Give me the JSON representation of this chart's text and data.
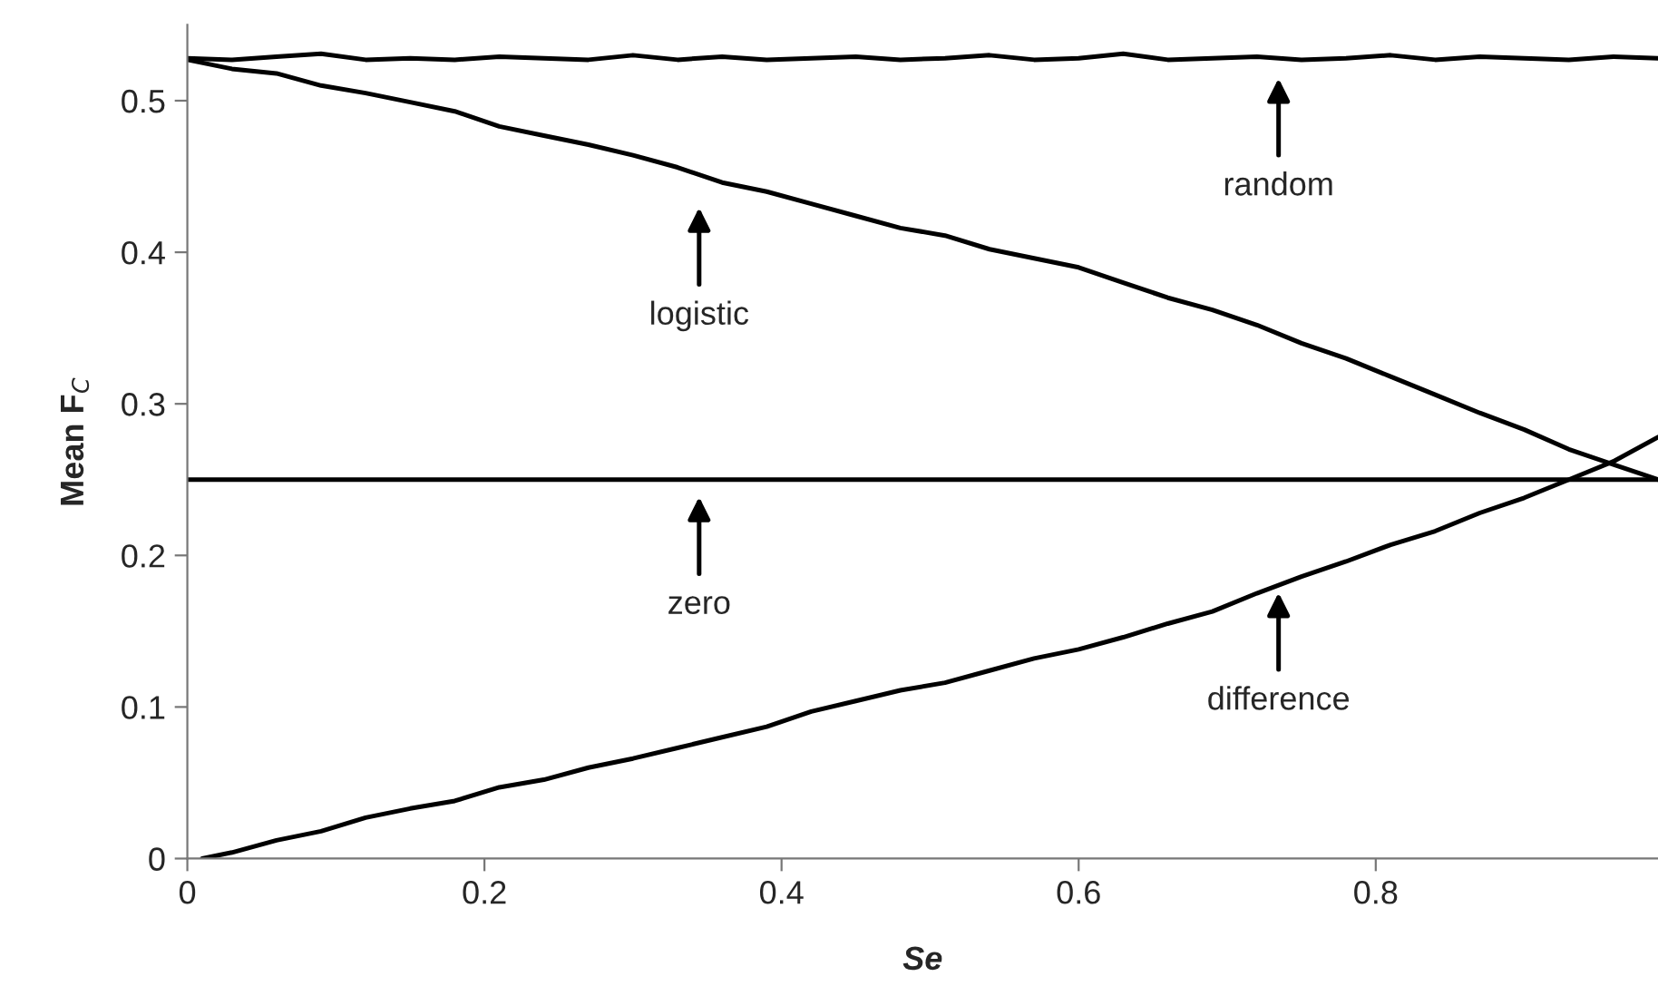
{
  "chart_data": {
    "type": "line",
    "xlabel": "Se",
    "ylabel": "Mean F$_{C}$",
    "x": [
      0,
      0.03,
      0.06,
      0.09,
      0.12,
      0.15,
      0.18,
      0.21,
      0.24,
      0.27,
      0.3,
      0.33,
      0.36,
      0.39,
      0.42,
      0.45,
      0.48,
      0.51,
      0.54,
      0.57,
      0.6,
      0.63,
      0.66,
      0.69,
      0.72,
      0.75,
      0.78,
      0.81,
      0.84,
      0.87,
      0.9,
      0.93,
      0.96,
      0.99
    ],
    "series": [
      {
        "color": "#000000",
        "values": [
          0.528,
          0.527,
          0.529,
          0.531,
          0.527,
          0.528,
          0.527,
          0.529,
          0.528,
          0.527,
          0.53,
          0.527,
          0.529,
          0.527,
          0.528,
          0.529,
          0.527,
          0.528,
          0.53,
          0.527,
          0.528,
          0.531,
          0.527,
          0.528,
          0.529,
          0.527,
          0.528,
          0.53,
          0.527,
          0.529,
          0.528,
          0.527,
          0.529,
          0.528
        ]
      },
      {
        "color": "#000000",
        "values": [
          0.527,
          0.521,
          0.518,
          0.51,
          0.505,
          0.499,
          0.493,
          0.483,
          0.477,
          0.471,
          0.464,
          0.456,
          0.446,
          0.44,
          0.432,
          0.424,
          0.416,
          0.411,
          0.402,
          0.396,
          0.39,
          0.38,
          0.37,
          0.362,
          0.352,
          0.34,
          0.33,
          0.318,
          0.306,
          0.294,
          0.283,
          0.27,
          0.26,
          0.25
        ]
      },
      {
        "color": "#000000",
        "x": [
          0,
          0.99
        ],
        "values": [
          0.25,
          0.25
        ]
      },
      {
        "color": "#000000",
        "x": [
          0.01,
          0.03,
          0.06,
          0.09,
          0.12,
          0.15,
          0.18,
          0.21,
          0.24,
          0.27,
          0.3,
          0.33,
          0.36,
          0.39,
          0.42,
          0.45,
          0.48,
          0.51,
          0.54,
          0.57,
          0.6,
          0.63,
          0.66,
          0.69,
          0.72,
          0.75,
          0.78,
          0.81,
          0.84,
          0.87,
          0.9,
          0.93,
          0.96,
          0.99
        ],
        "values": [
          0.0,
          0.004,
          0.012,
          0.018,
          0.027,
          0.033,
          0.038,
          0.047,
          0.052,
          0.06,
          0.066,
          0.073,
          0.08,
          0.087,
          0.097,
          0.104,
          0.111,
          0.116,
          0.124,
          0.132,
          0.138,
          0.146,
          0.155,
          0.163,
          0.175,
          0.186,
          0.196,
          0.207,
          0.216,
          0.228,
          0.238,
          0.25,
          0.262,
          0.278
        ]
      }
    ],
    "annotations": [
      "random",
      "logistic",
      "zero",
      "difference"
    ],
    "xlim": [
      0,
      0.99
    ],
    "ylim": [
      0,
      0.55
    ],
    "xticks": [
      0,
      0.2,
      0.4,
      0.6,
      0.8
    ],
    "yticks": [
      0,
      0.1,
      0.2,
      0.3,
      0.4,
      0.5
    ],
    "grid": false,
    "marker": "none",
    "line_style": "solid"
  }
}
